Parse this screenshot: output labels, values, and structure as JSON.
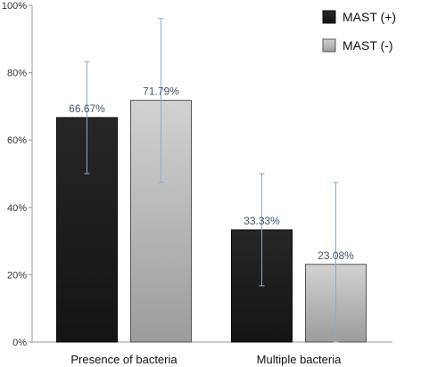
{
  "chart_data": {
    "type": "bar",
    "title": "",
    "xlabel": "",
    "ylabel": "",
    "categories": [
      "Presence of bacteria",
      "Multiple bacteria"
    ],
    "series": [
      {
        "name": "MAST (+)",
        "values": [
          66.67,
          33.33
        ],
        "labels": [
          "66.67%",
          "33.33%"
        ],
        "error_low": [
          50.0,
          16.7
        ],
        "error_high": [
          83.3,
          50.0
        ],
        "color": "#1e1e1e"
      },
      {
        "name": "MAST (-)",
        "values": [
          71.79,
          23.08
        ],
        "labels": [
          "71.79%",
          "23.08%"
        ],
        "error_low": [
          47.4,
          0
        ],
        "error_high": [
          96.1,
          47.4
        ],
        "color": "#b4b4b4"
      }
    ],
    "ylim": [
      0,
      100
    ],
    "yticks": [
      0,
      20,
      40,
      60,
      80,
      100
    ],
    "ytick_labels": [
      "0%",
      "20%",
      "40%",
      "60%",
      "80%",
      "100%"
    ],
    "grid": false,
    "legend_position": "top-right"
  }
}
